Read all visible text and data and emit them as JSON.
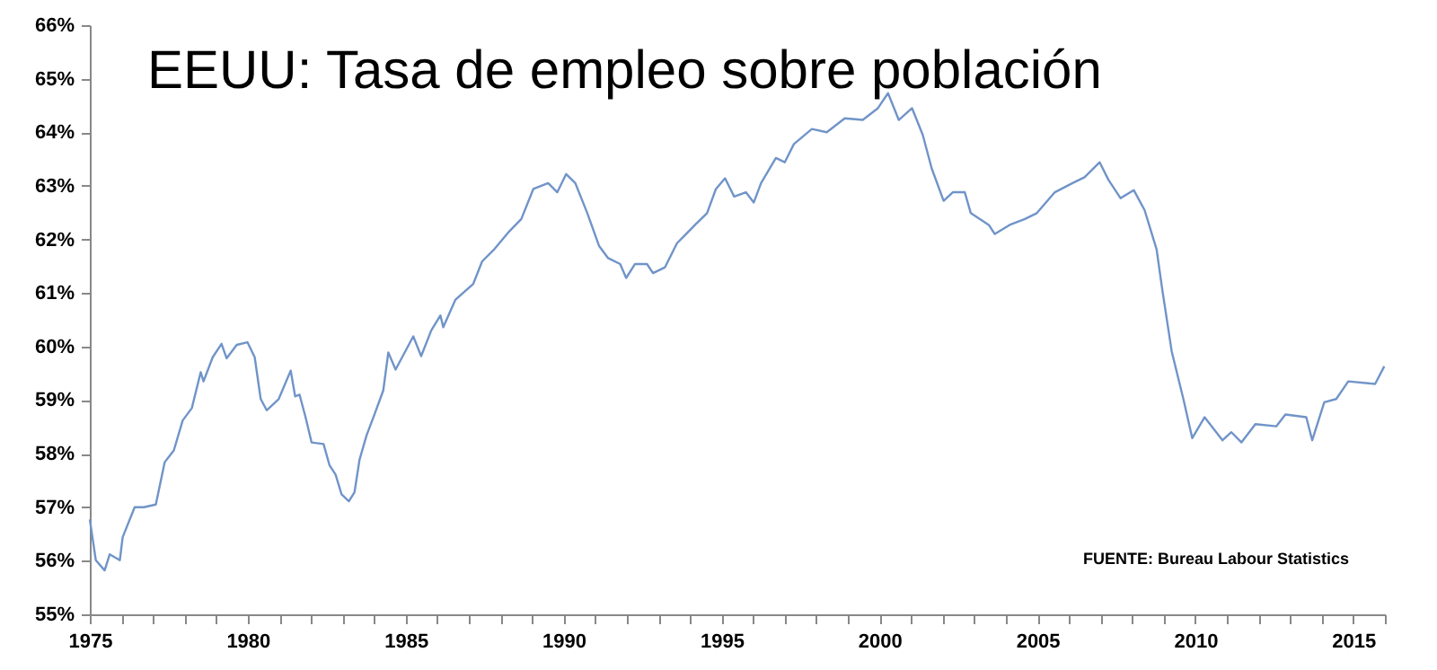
{
  "chart_data": {
    "type": "line",
    "title": "EEUU: Tasa de empleo sobre población",
    "annotations": [
      "FUENTE: Bureau Labour Statistics"
    ],
    "xlim": [
      1975,
      2016
    ],
    "xticks": [
      1975,
      {
        "value": 1976,
        "label": null
      },
      {
        "value": 1977,
        "label": null
      },
      {
        "value": 1978,
        "label": null
      },
      {
        "value": 1979,
        "label": null
      },
      1980,
      {
        "value": 1981,
        "label": null
      },
      {
        "value": 1982,
        "label": null
      },
      {
        "value": 1983,
        "label": null
      },
      {
        "value": 1984,
        "label": null
      },
      1985,
      {
        "value": 1986,
        "label": null
      },
      {
        "value": 1987,
        "label": null
      },
      {
        "value": 1988,
        "label": null
      },
      {
        "value": 1989,
        "label": null
      },
      1990,
      {
        "value": 1991,
        "label": null
      },
      {
        "value": 1992,
        "label": null
      },
      {
        "value": 1993,
        "label": null
      },
      {
        "value": 1994,
        "label": null
      },
      1995,
      {
        "value": 1996,
        "label": null
      },
      {
        "value": 1997,
        "label": null
      },
      {
        "value": 1998,
        "label": null
      },
      {
        "value": 1999,
        "label": null
      },
      2000,
      {
        "value": 2001,
        "label": null
      },
      {
        "value": 2002,
        "label": null
      },
      {
        "value": 2003,
        "label": null
      },
      {
        "value": 2004,
        "label": null
      },
      2005,
      {
        "value": 2006,
        "label": null
      },
      {
        "value": 2007,
        "label": null
      },
      {
        "value": 2008,
        "label": null
      },
      {
        "value": 2009,
        "label": null
      },
      2010,
      {
        "value": 2011,
        "label": null
      },
      {
        "value": 2012,
        "label": null
      },
      {
        "value": 2013,
        "label": null
      },
      {
        "value": 2014,
        "label": null
      },
      2015,
      {
        "value": 2016,
        "label": null
      }
    ],
    "ylim": [
      55,
      66
    ],
    "yticks": [
      {
        "value": 55,
        "label": "55%"
      },
      {
        "value": 56,
        "label": "56%"
      },
      {
        "value": 57,
        "label": "57%"
      },
      {
        "value": 58,
        "label": "58%"
      },
      {
        "value": 59,
        "label": "59%"
      },
      {
        "value": 60,
        "label": "60%"
      },
      {
        "value": 61,
        "label": "61%"
      },
      {
        "value": 62,
        "label": "62%"
      },
      {
        "value": 63,
        "label": "63%"
      },
      {
        "value": 64,
        "label": "64%"
      },
      {
        "value": 65,
        "label": "65%"
      },
      {
        "value": 66,
        "label": "66%"
      }
    ],
    "grid": false,
    "marker": "none",
    "line_style": "solid",
    "series": [
      {
        "color": "#7094c8",
        "x": [
          1975.0,
          1975.19,
          1975.47,
          1975.63,
          1975.95,
          1976.04,
          1976.42,
          1976.71,
          1977.09,
          1977.37,
          1977.66,
          1977.94,
          1978.23,
          1978.51,
          1978.6,
          1978.89,
          1979.17,
          1979.33,
          1979.65,
          1979.99,
          1980.22,
          1980.41,
          1980.6,
          1980.98,
          1981.36,
          1981.5,
          1981.64,
          1981.83,
          1982.02,
          1982.4,
          1982.59,
          1982.78,
          1982.97,
          1983.2,
          1983.38,
          1983.54,
          1983.76,
          1984.01,
          1984.29,
          1984.45,
          1984.68,
          1985.24,
          1985.49,
          1985.81,
          1986.1,
          1986.19,
          1986.57,
          1987.14,
          1987.42,
          1987.81,
          1988.28,
          1988.66,
          1989.04,
          1989.51,
          1989.8,
          1990.08,
          1990.37,
          1990.75,
          1991.12,
          1991.41,
          1991.79,
          1991.98,
          1992.26,
          1992.64,
          1992.83,
          1993.21,
          1993.59,
          1994.16,
          1994.54,
          1994.82,
          1995.11,
          1995.4,
          1995.77,
          1996.02,
          1996.25,
          1996.72,
          1997.0,
          1997.29,
          1997.86,
          1998.33,
          1998.9,
          1999.47,
          1999.95,
          2000.27,
          2000.61,
          2001.03,
          2001.37,
          2001.65,
          2002.03,
          2002.32,
          2002.7,
          2002.89,
          2003.46,
          2003.65,
          2004.12,
          2004.6,
          2004.98,
          2005.55,
          2006.11,
          2006.49,
          2006.97,
          2007.25,
          2007.63,
          2008.05,
          2008.39,
          2008.77,
          2008.96,
          2009.25,
          2009.62,
          2009.9,
          2010.29,
          2010.86,
          2011.14,
          2011.46,
          2011.9,
          2012.56,
          2012.85,
          2013.51,
          2013.7,
          2014.08,
          2014.46,
          2014.84,
          2015.69,
          2015.98
        ],
        "values": [
          56.77,
          56.01,
          55.82,
          56.12,
          56.01,
          56.44,
          57.0,
          57.0,
          57.05,
          57.84,
          58.06,
          58.62,
          58.85,
          59.52,
          59.35,
          59.8,
          60.05,
          59.78,
          60.03,
          60.08,
          59.8,
          59.02,
          58.81,
          59.02,
          59.55,
          59.07,
          59.1,
          58.68,
          58.21,
          58.18,
          57.78,
          57.61,
          57.24,
          57.11,
          57.28,
          57.89,
          58.34,
          58.73,
          59.18,
          59.89,
          59.57,
          60.19,
          59.82,
          60.3,
          60.58,
          60.36,
          60.87,
          61.17,
          61.59,
          61.82,
          62.15,
          62.38,
          62.94,
          63.05,
          62.88,
          63.22,
          63.05,
          62.49,
          61.88,
          61.65,
          61.54,
          61.28,
          61.54,
          61.54,
          61.37,
          61.48,
          61.93,
          62.27,
          62.49,
          62.94,
          63.14,
          62.8,
          62.88,
          62.69,
          63.05,
          63.52,
          63.44,
          63.78,
          64.06,
          64.0,
          64.26,
          64.23,
          64.45,
          64.73,
          64.23,
          64.45,
          63.95,
          63.33,
          62.72,
          62.88,
          62.88,
          62.49,
          62.27,
          62.1,
          62.27,
          62.38,
          62.49,
          62.88,
          63.05,
          63.16,
          63.44,
          63.11,
          62.77,
          62.92,
          62.55,
          61.82,
          61.03,
          59.91,
          59.02,
          58.29,
          58.68,
          58.25,
          58.4,
          58.21,
          58.55,
          58.51,
          58.73,
          58.68,
          58.25,
          58.96,
          59.02,
          59.35,
          59.3,
          59.63
        ]
      }
    ]
  }
}
